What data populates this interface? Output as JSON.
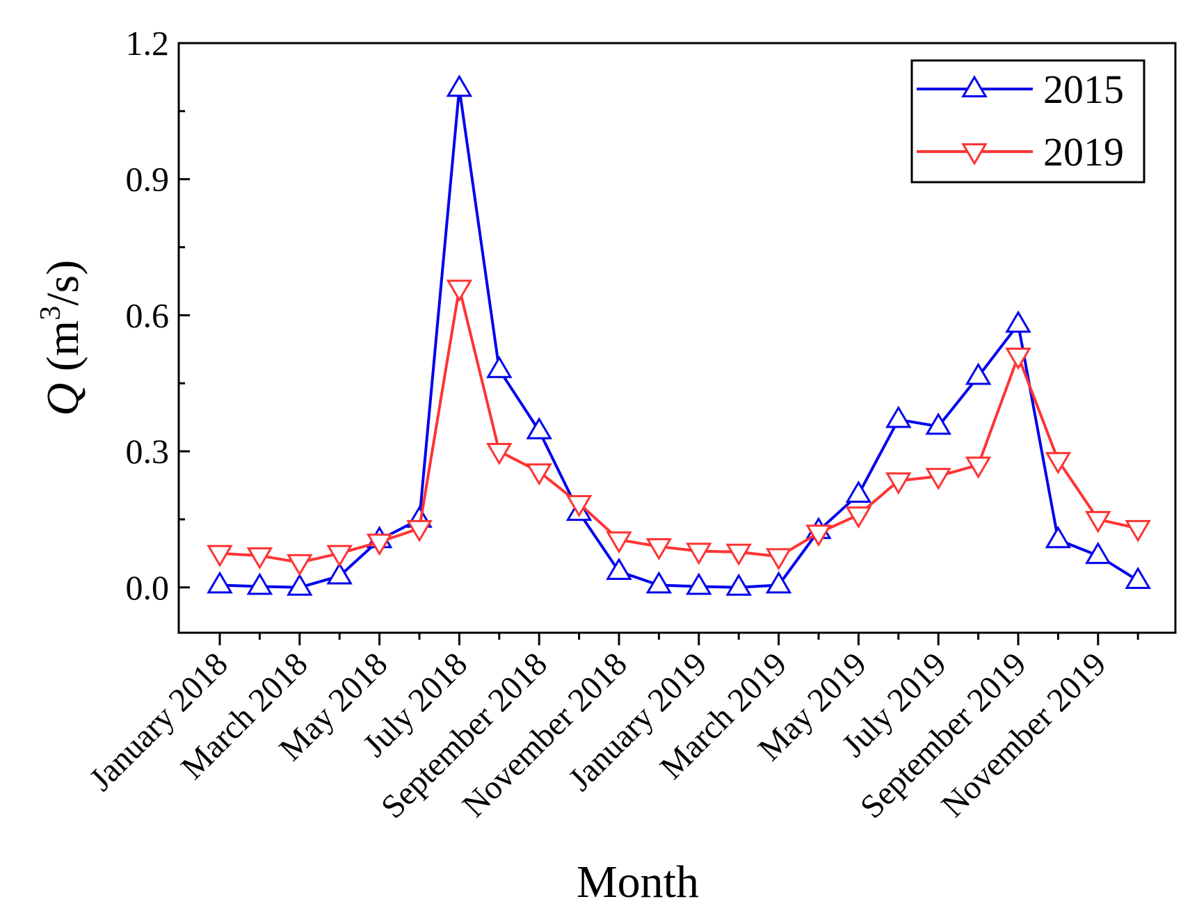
{
  "chart_data": {
    "type": "line",
    "title": "",
    "xlabel": "Month",
    "ylabel": {
      "symbol": "Q",
      "unit_open": " (m",
      "unit_sup": "3",
      "unit_close": "/s)"
    },
    "ylim": [
      -0.1,
      1.2
    ],
    "yticks": [
      0.0,
      0.3,
      0.6,
      0.9,
      1.2
    ],
    "ytick_labels": [
      "0.0",
      "0.3",
      "0.6",
      "0.9",
      "1.2"
    ],
    "categories": [
      "January 2018",
      "February 2018",
      "March 2018",
      "April 2018",
      "May 2018",
      "June 2018",
      "July 2018",
      "August 2018",
      "September 2018",
      "October 2018",
      "November 2018",
      "December 2018",
      "January 2019",
      "February 2019",
      "March 2019",
      "April 2019",
      "May 2019",
      "June 2019",
      "July 2019",
      "August 2019",
      "September 2019",
      "October 2019",
      "November 2019",
      "December 2019"
    ],
    "xtick_labels": [
      "January 2018",
      "March 2018",
      "May 2018",
      "July 2018",
      "September 2018",
      "November 2018",
      "January 2019",
      "March 2019",
      "May 2019",
      "July 2019",
      "September 2019",
      "November 2019"
    ],
    "legend_position": "top-right",
    "series": [
      {
        "name": "2015",
        "color": "#0000ee",
        "marker": "triangle-up",
        "values": [
          0.005,
          0.002,
          0.0,
          0.025,
          0.105,
          0.15,
          1.1,
          0.48,
          0.345,
          0.165,
          0.035,
          0.005,
          0.002,
          0.0,
          0.005,
          0.125,
          0.205,
          0.37,
          0.355,
          0.465,
          0.58,
          0.105,
          0.07,
          0.015
        ]
      },
      {
        "name": "2019",
        "color": "#ff3333",
        "marker": "triangle-down",
        "values": [
          0.075,
          0.07,
          0.055,
          0.075,
          0.1,
          0.13,
          0.66,
          0.3,
          0.255,
          0.185,
          0.105,
          0.09,
          0.08,
          0.078,
          0.068,
          0.12,
          0.16,
          0.235,
          0.245,
          0.27,
          0.51,
          0.28,
          0.15,
          0.13
        ]
      }
    ]
  }
}
